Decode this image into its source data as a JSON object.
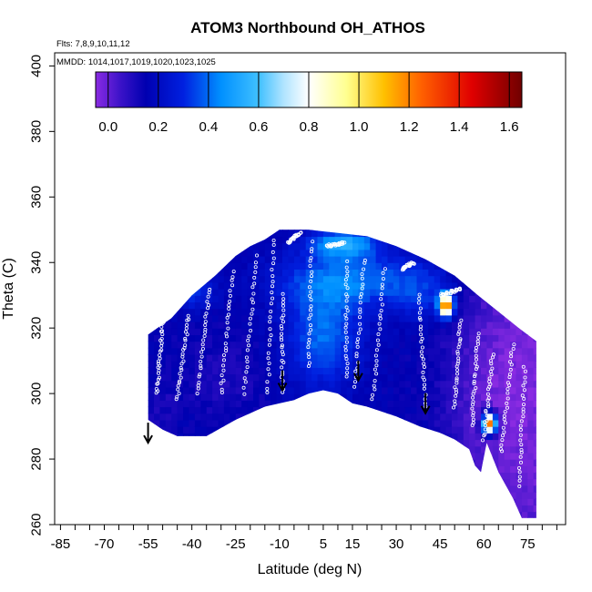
{
  "chart_data": {
    "type": "heatmap",
    "title": "ATOM3 Northbound OH_ATHOS",
    "notes": {
      "flights": "Flts: 7,8,9,10,11,12",
      "dates": "MMDD: 1014,1017,1019,1020,1023,1025"
    },
    "xlabel": "Latitude (deg N)",
    "ylabel": "Theta (C)",
    "xlim": [
      -87,
      88
    ],
    "ylim": [
      260,
      404
    ],
    "x_ticks": [
      -85,
      -80,
      -75,
      -70,
      -65,
      -60,
      -55,
      -50,
      -45,
      -40,
      -35,
      -30,
      -25,
      -20,
      -15,
      -10,
      -5,
      0,
      5,
      10,
      15,
      20,
      25,
      30,
      35,
      40,
      45,
      50,
      55,
      60,
      65,
      70,
      75,
      80,
      85
    ],
    "x_tick_labels": [
      "-85",
      "-70",
      "-55",
      "-40",
      "-25",
      "-10",
      "5",
      "15",
      "30",
      "45",
      "60",
      "75"
    ],
    "x_tick_label_values": [
      -85,
      -70,
      -55,
      -40,
      -25,
      -10,
      5,
      15,
      30,
      45,
      60,
      75
    ],
    "y_ticks": [
      260,
      280,
      300,
      320,
      340,
      360,
      380,
      400
    ],
    "y_tick_labels": [
      "260",
      "280",
      "300",
      "320",
      "340",
      "360",
      "380",
      "400"
    ],
    "colorbar": {
      "range": [
        -0.05,
        1.65
      ],
      "tick_values": [
        0.0,
        0.2,
        0.4,
        0.6,
        0.8,
        1.0,
        1.2,
        1.4,
        1.6
      ],
      "tick_labels": [
        "0.0",
        "0.2",
        "0.4",
        "0.6",
        "0.8",
        "1.0",
        "1.2",
        "1.4",
        "1.6"
      ],
      "stops": [
        {
          "value": -0.05,
          "color": "#8a2be2"
        },
        {
          "value": 0.05,
          "color": "#3a12c8"
        },
        {
          "value": 0.15,
          "color": "#0000b0"
        },
        {
          "value": 0.3,
          "color": "#0020e0"
        },
        {
          "value": 0.45,
          "color": "#0090ff"
        },
        {
          "value": 0.6,
          "color": "#40c0ff"
        },
        {
          "value": 0.7,
          "color": "#b0e4ff"
        },
        {
          "value": 0.8,
          "color": "#ffffff"
        },
        {
          "value": 0.95,
          "color": "#ffff90"
        },
        {
          "value": 1.1,
          "color": "#ffc000"
        },
        {
          "value": 1.25,
          "color": "#ff6000"
        },
        {
          "value": 1.45,
          "color": "#e00000"
        },
        {
          "value": 1.65,
          "color": "#700000"
        }
      ]
    },
    "field": {
      "lat_range": [
        -55,
        78
      ],
      "upper_boundary": [
        [
          -55,
          318
        ],
        [
          -47,
          323
        ],
        [
          -40,
          330
        ],
        [
          -32,
          336
        ],
        [
          -25,
          342
        ],
        [
          -20,
          345
        ],
        [
          -15,
          347
        ],
        [
          -10,
          350
        ],
        [
          0,
          350
        ],
        [
          10,
          349
        ],
        [
          20,
          348
        ],
        [
          30,
          345
        ],
        [
          40,
          341
        ],
        [
          50,
          336
        ],
        [
          58,
          330
        ],
        [
          65,
          325
        ],
        [
          72,
          320
        ],
        [
          78,
          316
        ]
      ],
      "lower_boundary": [
        [
          -55,
          292
        ],
        [
          -50,
          289
        ],
        [
          -45,
          287
        ],
        [
          -35,
          287
        ],
        [
          -25,
          292
        ],
        [
          -15,
          296
        ],
        [
          -10,
          297
        ],
        [
          -5,
          298
        ],
        [
          0,
          300
        ],
        [
          5,
          301
        ],
        [
          10,
          300
        ],
        [
          15,
          297
        ],
        [
          20,
          296
        ],
        [
          30,
          293
        ],
        [
          38,
          290
        ],
        [
          45,
          288
        ],
        [
          50,
          286
        ],
        [
          55,
          283
        ],
        [
          57,
          278
        ],
        [
          59,
          276
        ],
        [
          61,
          285
        ],
        [
          65,
          276
        ],
        [
          70,
          268
        ],
        [
          73,
          262
        ],
        [
          78,
          262
        ]
      ],
      "background_value": 0.15,
      "anomalies": [
        {
          "lat": 5,
          "theta": 318,
          "sigma_lat": 9,
          "sigma_theta": 11,
          "delta": 0.25
        },
        {
          "lat": 15,
          "theta": 335,
          "sigma_lat": 18,
          "sigma_theta": 6,
          "delta": 0.25
        },
        {
          "lat": 12,
          "theta": 346,
          "sigma_lat": 8,
          "sigma_theta": 3,
          "delta": 0.35
        },
        {
          "lat": -40,
          "theta": 332,
          "sigma_lat": 5,
          "sigma_theta": 4,
          "delta": 0.2
        },
        {
          "lat": 65,
          "theta": 300,
          "sigma_lat": 12,
          "sigma_theta": 25,
          "delta": -0.1
        },
        {
          "lat": -30,
          "theta": 305,
          "sigma_lat": 10,
          "sigma_theta": 8,
          "delta": -0.05
        },
        {
          "lat": 40,
          "theta": 330,
          "sigma_lat": 8,
          "sigma_theta": 6,
          "delta": 0.12
        }
      ],
      "hotspots": [
        {
          "lat": 47,
          "theta": 327,
          "value": 1.3
        },
        {
          "lat": 62,
          "theta": 291,
          "value": 1.35
        }
      ]
    },
    "arrows": [
      {
        "lat": -55,
        "theta": 285
      },
      {
        "lat": -9,
        "theta": 301
      },
      {
        "lat": 17,
        "theta": 304
      },
      {
        "lat": 40,
        "theta": 294
      }
    ],
    "flight_tracks": [
      {
        "lat_start": -52,
        "theta_start": 300,
        "lat_end": -50,
        "theta_end": 322
      },
      {
        "lat_start": -45,
        "theta_start": 298,
        "lat_end": -41,
        "theta_end": 324
      },
      {
        "lat_start": -38,
        "theta_start": 300,
        "lat_end": -34,
        "theta_end": 332
      },
      {
        "lat_start": -30,
        "theta_start": 300,
        "lat_end": -26,
        "theta_end": 337
      },
      {
        "lat_start": -22,
        "theta_start": 300,
        "lat_end": -18,
        "theta_end": 342
      },
      {
        "lat_start": -14,
        "theta_start": 300,
        "lat_end": -12,
        "theta_end": 347
      },
      {
        "lat_start": -9,
        "theta_start": 300,
        "lat_end": -9,
        "theta_end": 330
      },
      {
        "lat_start": -7,
        "theta_start": 346,
        "lat_end": -3,
        "theta_end": 349
      },
      {
        "lat_start": 0,
        "theta_start": 308,
        "lat_end": 1,
        "theta_end": 346
      },
      {
        "lat_start": 6,
        "theta_start": 345,
        "lat_end": 12,
        "theta_end": 346
      },
      {
        "lat_start": 13,
        "theta_start": 305,
        "lat_end": 13,
        "theta_end": 340
      },
      {
        "lat_start": 16,
        "theta_start": 302,
        "lat_end": 19,
        "theta_end": 341
      },
      {
        "lat_start": 22,
        "theta_start": 298,
        "lat_end": 26,
        "theta_end": 338
      },
      {
        "lat_start": 32,
        "theta_start": 338,
        "lat_end": 36,
        "theta_end": 340
      },
      {
        "lat_start": 40,
        "theta_start": 296,
        "lat_end": 38,
        "theta_end": 330
      },
      {
        "lat_start": 45,
        "theta_start": 330,
        "lat_end": 52,
        "theta_end": 332
      },
      {
        "lat_start": 50,
        "theta_start": 296,
        "lat_end": 52,
        "theta_end": 322
      },
      {
        "lat_start": 56,
        "theta_start": 290,
        "lat_end": 58,
        "theta_end": 318
      },
      {
        "lat_start": 60,
        "theta_start": 286,
        "lat_end": 63,
        "theta_end": 312
      },
      {
        "lat_start": 66,
        "theta_start": 282,
        "lat_end": 70,
        "theta_end": 315
      },
      {
        "lat_start": 72,
        "theta_start": 272,
        "lat_end": 74,
        "theta_end": 308
      }
    ]
  }
}
